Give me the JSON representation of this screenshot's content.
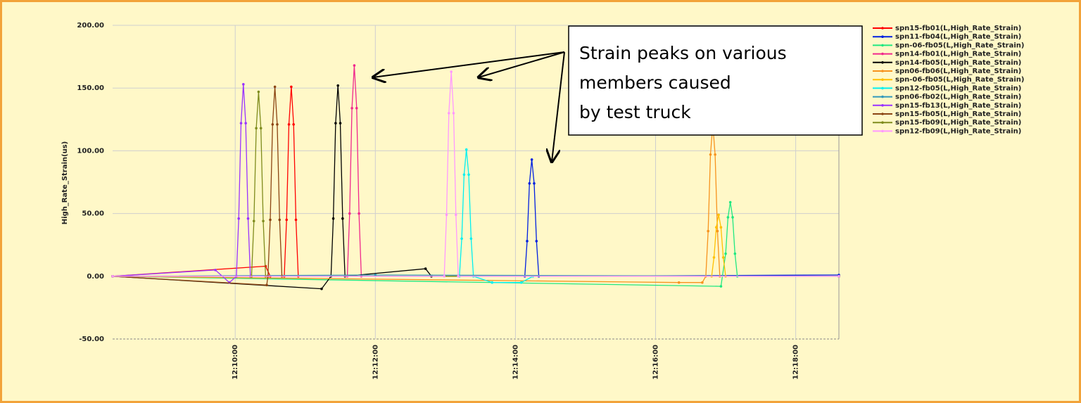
{
  "chart_data": {
    "type": "line",
    "y_label": "High_Rate_Strain(us)",
    "annotation": [
      "Strain peaks on various",
      "members caused",
      "by test truck"
    ],
    "xlim": [
      "12:08:15",
      "12:18:37"
    ],
    "xticks": [
      "12:10:00",
      "12:12:00",
      "12:14:00",
      "12:16:00",
      "12:18:00"
    ],
    "ylim": [
      -50,
      200
    ],
    "yticks": [
      {
        "value": -50,
        "label": "-50.00"
      },
      {
        "value": 0,
        "label": "0.00"
      },
      {
        "value": 50,
        "label": "50.00"
      },
      {
        "value": 100,
        "label": "100.00"
      },
      {
        "value": 150,
        "label": "150.00"
      },
      {
        "value": 200,
        "label": "200.00"
      }
    ],
    "grid": true,
    "legend": "top-right",
    "series": [
      {
        "name": "spn15-fb01(L,High_Rate_Strain)",
        "color": "#ff0000",
        "x": [
          "12:08:15",
          "12:10:26",
          "12:10:30",
          "12:10:42",
          "12:10:44",
          "12:10:46",
          "12:10:48",
          "12:10:50",
          "12:10:52",
          "12:10:54",
          "12:18:37"
        ],
        "values": [
          0,
          8,
          0,
          0,
          45,
          121,
          151,
          121,
          45,
          0,
          0
        ]
      },
      {
        "name": "spn11-fb04(L,High_Rate_Strain)",
        "color": "#0020e0",
        "x": [
          "12:08:15",
          "12:14:08",
          "12:14:10",
          "12:14:12",
          "12:14:14",
          "12:14:16",
          "12:14:18",
          "12:14:20",
          "12:18:37"
        ],
        "values": [
          0,
          0,
          28,
          74,
          93,
          74,
          28,
          0,
          1
        ]
      },
      {
        "name": "spn-06-fb05(L,High_Rate_Strain)",
        "color": "#20e880",
        "x": [
          "12:08:15",
          "12:16:56",
          "12:17:00",
          "12:17:02",
          "12:17:04",
          "12:17:06",
          "12:17:08",
          "12:17:10",
          "12:18:37"
        ],
        "values": [
          0,
          -8,
          18,
          47,
          59,
          47,
          18,
          0,
          0
        ]
      },
      {
        "name": "spn14-fb01(L,High_Rate_Strain)",
        "color": "#f0288c",
        "x": [
          "12:08:15",
          "12:11:36",
          "12:11:38",
          "12:11:40",
          "12:11:42",
          "12:11:44",
          "12:11:46",
          "12:11:48",
          "12:18:37"
        ],
        "values": [
          0,
          0,
          50,
          134,
          168,
          134,
          50,
          0,
          0
        ]
      },
      {
        "name": "spn14-fb05(L,High_Rate_Strain)",
        "color": "#000000",
        "x": [
          "12:08:15",
          "12:11:14",
          "12:11:22",
          "12:11:24",
          "12:11:26",
          "12:11:28",
          "12:11:30",
          "12:11:32",
          "12:11:34",
          "12:12:43",
          "12:12:48",
          "12:18:37"
        ],
        "values": [
          0,
          -10,
          0,
          46,
          122,
          152,
          122,
          46,
          0,
          6,
          0,
          0
        ]
      },
      {
        "name": "spn06-fb06(L,High_Rate_Strain)",
        "color": "#f7931e",
        "x": [
          "12:08:15",
          "12:16:20",
          "12:16:40",
          "12:16:43",
          "12:16:45",
          "12:16:47",
          "12:16:49",
          "12:16:51",
          "12:16:53",
          "12:16:55",
          "12:18:37"
        ],
        "values": [
          0,
          -5,
          -5,
          0,
          36,
          97,
          121,
          97,
          36,
          0,
          0
        ]
      },
      {
        "name": "spn-06-fb05(L,High_Rate_Strain)",
        "color": "#ffc000",
        "x": [
          "12:08:15",
          "12:16:48",
          "12:16:50",
          "12:16:52",
          "12:16:54",
          "12:16:56",
          "12:16:58",
          "12:17:00",
          "12:18:37"
        ],
        "values": [
          0,
          0,
          15,
          39,
          49,
          39,
          15,
          0,
          0
        ]
      },
      {
        "name": "spn12-fb05(L,High_Rate_Strain)",
        "color": "#00f0f0",
        "x": [
          "12:08:15",
          "12:13:12",
          "12:13:14",
          "12:13:16",
          "12:13:18",
          "12:13:20",
          "12:13:22",
          "12:13:24",
          "12:13:40",
          "12:14:05",
          "12:14:15",
          "12:18:37"
        ],
        "values": [
          0,
          0,
          30,
          81,
          101,
          81,
          30,
          0,
          -5,
          -5,
          0,
          0
        ]
      },
      {
        "name": "spn06-fb02(L,High_Rate_Strain)",
        "color": "#3399bb",
        "x": [
          "12:08:15",
          "12:12:00",
          "12:18:37"
        ],
        "values": [
          0,
          1,
          0
        ]
      },
      {
        "name": "spn15-fb13(L,High_Rate_Strain)",
        "color": "#9933ff",
        "x": [
          "12:08:15",
          "12:09:43",
          "12:09:55",
          "12:10:01",
          "12:10:03",
          "12:10:05",
          "12:10:07",
          "12:10:09",
          "12:10:11",
          "12:10:13",
          "12:18:37"
        ],
        "values": [
          0,
          5,
          -5,
          0,
          46,
          122,
          153,
          122,
          46,
          0,
          0
        ]
      },
      {
        "name": "spn15-fb05(L,High_Rate_Strain)",
        "color": "#8b4513",
        "x": [
          "12:08:15",
          "12:10:27",
          "12:10:28",
          "12:10:30",
          "12:10:32",
          "12:10:34",
          "12:10:36",
          "12:10:38",
          "12:10:40",
          "12:18:37"
        ],
        "values": [
          0,
          -7,
          0,
          45,
          121,
          151,
          121,
          45,
          0,
          0
        ]
      },
      {
        "name": "spn15-fb09(L,High_Rate_Strain)",
        "color": "#7f8c1d",
        "x": [
          "12:08:15",
          "12:10:14",
          "12:10:16",
          "12:10:18",
          "12:10:20",
          "12:10:22",
          "12:10:24",
          "12:10:26",
          "12:18:37"
        ],
        "values": [
          0,
          0,
          44,
          118,
          147,
          118,
          44,
          0,
          0
        ]
      },
      {
        "name": "spn12-fb09(L,High_Rate_Strain)",
        "color": "#ff99ff",
        "x": [
          "12:08:15",
          "12:12:59",
          "12:13:01",
          "12:13:03",
          "12:13:05",
          "12:13:07",
          "12:13:09",
          "12:13:11",
          "12:18:37"
        ],
        "values": [
          0,
          0,
          49,
          130,
          163,
          130,
          49,
          0,
          0
        ]
      }
    ]
  }
}
